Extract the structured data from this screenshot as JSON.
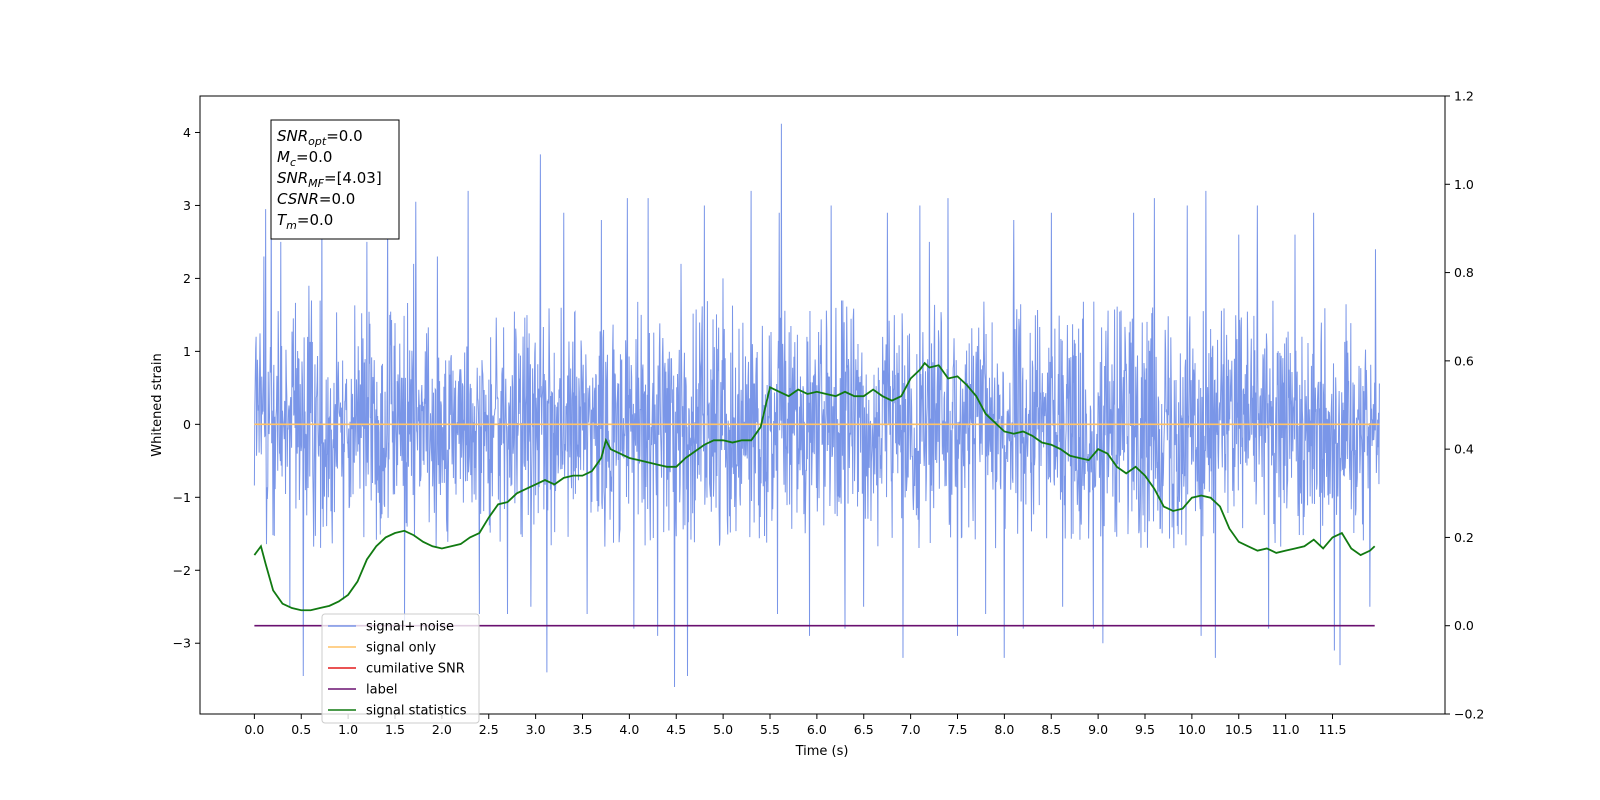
{
  "chart_data": {
    "type": "line",
    "xlabel": "Time (s)",
    "ylabel": "Whitened strain",
    "xlim": [
      -0.58,
      12.7
    ],
    "ylim": [
      -3.97,
      4.5
    ],
    "y2lim": [
      -0.2,
      1.2
    ],
    "x_ticks": [
      "0.0",
      "0.5",
      "1.0",
      "1.5",
      "2.0",
      "2.5",
      "3.0",
      "3.5",
      "4.0",
      "4.5",
      "5.0",
      "5.5",
      "6.0",
      "6.5",
      "7.0",
      "7.5",
      "8.0",
      "8.5",
      "9.0",
      "9.5",
      "10.0",
      "10.5",
      "11.0",
      "11.5"
    ],
    "y_ticks": [
      "4",
      "3",
      "2",
      "1",
      "0",
      "−1",
      "−2",
      "−3"
    ],
    "y2_ticks": [
      "1.2",
      "1.0",
      "0.8",
      "0.6",
      "0.4",
      "0.2",
      "0.0",
      "−0.2"
    ],
    "info_box": [
      {
        "sym": "SNR",
        "sub": "opt",
        "val": "=0.0"
      },
      {
        "sym": "M",
        "sub": "c",
        "val": "=0.0"
      },
      {
        "sym": "SNR",
        "sub": "MF",
        "val": "=[4.03]"
      },
      {
        "sym": "CSNR",
        "sub": "",
        "val": "=0.0"
      },
      {
        "sym": "T",
        "sub": "m",
        "val": "=0.0"
      }
    ],
    "legend": [
      {
        "label": "signal+ noise",
        "color": "#7a96e8"
      },
      {
        "label": "signal only",
        "color": "#ffc266"
      },
      {
        "label": "cumilative SNR",
        "color": "#e31a1c"
      },
      {
        "label": "label",
        "color": "#6a1070"
      },
      {
        "label": "signal statistics",
        "color": "#117a11"
      }
    ],
    "legend_loc": "lower-left",
    "noise_series": {
      "name": "signal+ noise",
      "color": "#7a96e8",
      "x_range": [
        0,
        12
      ],
      "typical_band": [
        -1.7,
        1.7
      ],
      "spikes": [
        [
          0.02,
          1.2
        ],
        [
          0.1,
          2.3
        ],
        [
          0.12,
          2.95
        ],
        [
          0.18,
          3.2
        ],
        [
          0.28,
          2.5
        ],
        [
          0.38,
          -2.5
        ],
        [
          0.52,
          -3.45
        ],
        [
          0.58,
          1.9
        ],
        [
          0.72,
          3.0
        ],
        [
          0.95,
          -2.4
        ],
        [
          1.2,
          2.5
        ],
        [
          1.42,
          3.0
        ],
        [
          1.6,
          -2.7
        ],
        [
          1.7,
          2.2
        ],
        [
          1.72,
          3.05
        ],
        [
          1.95,
          2.3
        ],
        [
          2.28,
          3.2
        ],
        [
          2.4,
          -2.6
        ],
        [
          2.7,
          -2.6
        ],
        [
          2.95,
          -2.5
        ],
        [
          3.05,
          3.7
        ],
        [
          3.12,
          -3.4
        ],
        [
          3.3,
          2.9
        ],
        [
          3.55,
          -2.6
        ],
        [
          3.7,
          2.8
        ],
        [
          3.98,
          3.1
        ],
        [
          4.05,
          -2.8
        ],
        [
          4.2,
          3.1
        ],
        [
          4.3,
          -2.9
        ],
        [
          4.48,
          -3.6
        ],
        [
          4.55,
          2.2
        ],
        [
          4.62,
          -3.45
        ],
        [
          4.8,
          3.0
        ],
        [
          5.0,
          2.0
        ],
        [
          5.3,
          3.2
        ],
        [
          5.58,
          -2.6
        ],
        [
          5.6,
          2.9
        ],
        [
          5.62,
          4.12
        ],
        [
          5.92,
          -2.9
        ],
        [
          6.15,
          3.0
        ],
        [
          6.3,
          -2.8
        ],
        [
          6.5,
          -2.5
        ],
        [
          6.75,
          2.9
        ],
        [
          6.92,
          -3.2
        ],
        [
          7.1,
          3.0
        ],
        [
          7.2,
          2.5
        ],
        [
          7.4,
          3.1
        ],
        [
          7.5,
          -2.9
        ],
        [
          7.8,
          -2.6
        ],
        [
          8.0,
          -3.2
        ],
        [
          8.1,
          2.8
        ],
        [
          8.2,
          -2.8
        ],
        [
          8.5,
          2.9
        ],
        [
          8.62,
          -2.5
        ],
        [
          8.95,
          -2.8
        ],
        [
          9.05,
          -3.0
        ],
        [
          9.38,
          2.9
        ],
        [
          9.6,
          3.1
        ],
        [
          9.95,
          3.0
        ],
        [
          10.1,
          -2.9
        ],
        [
          10.15,
          3.2
        ],
        [
          10.25,
          -3.2
        ],
        [
          10.5,
          2.6
        ],
        [
          10.7,
          3.0
        ],
        [
          10.82,
          -2.8
        ],
        [
          11.1,
          2.6
        ],
        [
          11.3,
          2.9
        ],
        [
          11.52,
          -3.1
        ],
        [
          11.58,
          -3.3
        ],
        [
          11.9,
          -2.5
        ],
        [
          11.96,
          2.4
        ]
      ]
    },
    "series": [
      {
        "name": "signal only",
        "axis": "left",
        "color": "#ffc266",
        "x": [
          0,
          12
        ],
        "y": [
          0,
          0
        ]
      },
      {
        "name": "label",
        "axis": "right",
        "color": "#6a1070",
        "x": [
          0,
          11.95
        ],
        "y": [
          0,
          0
        ]
      },
      {
        "name": "signal statistics",
        "axis": "right",
        "color": "#117a11",
        "x": [
          0.0,
          0.07,
          0.12,
          0.2,
          0.3,
          0.4,
          0.5,
          0.6,
          0.7,
          0.8,
          0.9,
          1.0,
          1.1,
          1.2,
          1.3,
          1.4,
          1.5,
          1.6,
          1.7,
          1.8,
          1.9,
          2.0,
          2.1,
          2.2,
          2.3,
          2.4,
          2.5,
          2.55,
          2.6,
          2.7,
          2.8,
          2.9,
          3.0,
          3.1,
          3.2,
          3.3,
          3.4,
          3.5,
          3.6,
          3.7,
          3.75,
          3.8,
          3.9,
          4.0,
          4.1,
          4.2,
          4.3,
          4.4,
          4.5,
          4.6,
          4.7,
          4.8,
          4.9,
          5.0,
          5.1,
          5.2,
          5.3,
          5.4,
          5.5,
          5.6,
          5.7,
          5.8,
          5.9,
          6.0,
          6.1,
          6.2,
          6.3,
          6.4,
          6.5,
          6.6,
          6.7,
          6.8,
          6.9,
          7.0,
          7.1,
          7.15,
          7.2,
          7.3,
          7.4,
          7.5,
          7.6,
          7.7,
          7.8,
          7.9,
          8.0,
          8.1,
          8.2,
          8.3,
          8.4,
          8.5,
          8.6,
          8.7,
          8.8,
          8.9,
          9.0,
          9.1,
          9.2,
          9.3,
          9.4,
          9.5,
          9.6,
          9.7,
          9.8,
          9.9,
          10.0,
          10.1,
          10.2,
          10.3,
          10.4,
          10.5,
          10.6,
          10.7,
          10.8,
          10.9,
          11.0,
          11.1,
          11.2,
          11.3,
          11.4,
          11.5,
          11.6,
          11.7,
          11.8,
          11.9,
          11.95
        ],
        "y": [
          0.16,
          0.18,
          0.14,
          0.08,
          0.05,
          0.04,
          0.035,
          0.035,
          0.04,
          0.045,
          0.055,
          0.07,
          0.1,
          0.15,
          0.18,
          0.2,
          0.21,
          0.215,
          0.205,
          0.19,
          0.18,
          0.175,
          0.18,
          0.185,
          0.2,
          0.21,
          0.245,
          0.26,
          0.275,
          0.28,
          0.3,
          0.31,
          0.32,
          0.33,
          0.32,
          0.335,
          0.34,
          0.34,
          0.35,
          0.38,
          0.42,
          0.4,
          0.39,
          0.38,
          0.375,
          0.37,
          0.365,
          0.36,
          0.36,
          0.38,
          0.395,
          0.41,
          0.42,
          0.42,
          0.415,
          0.42,
          0.42,
          0.45,
          0.54,
          0.53,
          0.52,
          0.535,
          0.525,
          0.53,
          0.525,
          0.52,
          0.53,
          0.52,
          0.52,
          0.535,
          0.52,
          0.51,
          0.52,
          0.56,
          0.58,
          0.595,
          0.585,
          0.59,
          0.56,
          0.565,
          0.545,
          0.52,
          0.48,
          0.46,
          0.44,
          0.435,
          0.44,
          0.43,
          0.415,
          0.41,
          0.4,
          0.385,
          0.38,
          0.375,
          0.4,
          0.39,
          0.36,
          0.345,
          0.36,
          0.34,
          0.31,
          0.27,
          0.26,
          0.265,
          0.29,
          0.295,
          0.29,
          0.27,
          0.22,
          0.19,
          0.18,
          0.17,
          0.175,
          0.165,
          0.17,
          0.175,
          0.18,
          0.195,
          0.175,
          0.2,
          0.21,
          0.175,
          0.16,
          0.17,
          0.18
        ]
      }
    ]
  }
}
